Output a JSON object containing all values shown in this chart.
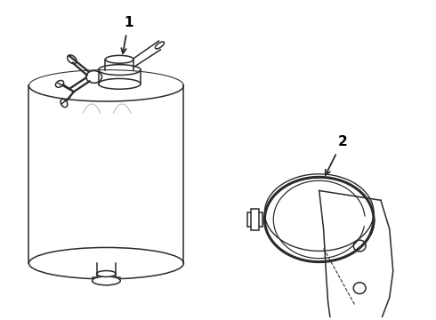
{
  "background_color": "#ffffff",
  "line_color": "#2a2a2a",
  "label_color": "#000000",
  "fig_width": 4.9,
  "fig_height": 3.6,
  "dpi": 100,
  "label1": "1",
  "label2": "2"
}
